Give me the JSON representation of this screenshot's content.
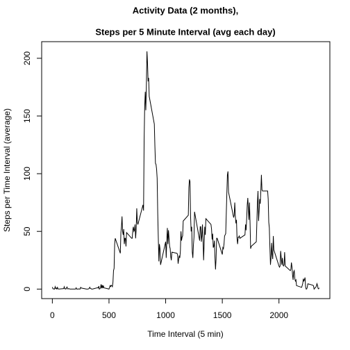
{
  "chart_data": {
    "type": "line",
    "title": "Activity Data (2 months),",
    "subtitle": "Steps per 5 Minute Interval (avg each day)",
    "x_label": "Time Interval (5 min)",
    "y_label": "Steps per Time Interval (average)",
    "xlim": [
      -94.2,
      2449.2
    ],
    "ylim": [
      -8.25,
      214.4
    ],
    "xticks": [
      0,
      500,
      1000,
      1500,
      2000
    ],
    "yticks": [
      0,
      50,
      100,
      150,
      200
    ],
    "color": "#000000",
    "x": [
      0,
      5,
      10,
      15,
      20,
      25,
      30,
      35,
      40,
      45,
      50,
      55,
      100,
      105,
      110,
      115,
      120,
      125,
      130,
      135,
      140,
      145,
      150,
      155,
      200,
      205,
      210,
      215,
      220,
      225,
      230,
      235,
      240,
      245,
      250,
      255,
      300,
      305,
      310,
      315,
      320,
      325,
      330,
      335,
      340,
      345,
      350,
      355,
      400,
      405,
      410,
      415,
      420,
      425,
      430,
      435,
      440,
      445,
      450,
      455,
      500,
      505,
      510,
      515,
      520,
      525,
      530,
      535,
      540,
      545,
      550,
      555,
      600,
      605,
      610,
      615,
      620,
      625,
      630,
      635,
      640,
      645,
      650,
      655,
      700,
      705,
      710,
      715,
      720,
      725,
      730,
      735,
      740,
      745,
      750,
      755,
      800,
      805,
      810,
      815,
      820,
      825,
      830,
      835,
      840,
      845,
      850,
      855,
      900,
      905,
      910,
      915,
      920,
      925,
      930,
      935,
      940,
      945,
      950,
      955,
      1000,
      1005,
      1010,
      1015,
      1020,
      1025,
      1030,
      1035,
      1040,
      1045,
      1050,
      1055,
      1100,
      1105,
      1110,
      1115,
      1120,
      1125,
      1130,
      1135,
      1140,
      1145,
      1150,
      1155,
      1200,
      1205,
      1210,
      1215,
      1220,
      1225,
      1230,
      1235,
      1240,
      1245,
      1250,
      1255,
      1300,
      1305,
      1310,
      1315,
      1320,
      1325,
      1330,
      1335,
      1340,
      1345,
      1350,
      1355,
      1400,
      1405,
      1410,
      1415,
      1420,
      1425,
      1430,
      1435,
      1440,
      1445,
      1450,
      1455,
      1500,
      1505,
      1510,
      1515,
      1520,
      1525,
      1530,
      1535,
      1540,
      1545,
      1550,
      1555,
      1600,
      1605,
      1610,
      1615,
      1620,
      1625,
      1630,
      1635,
      1640,
      1645,
      1650,
      1655,
      1700,
      1705,
      1710,
      1715,
      1720,
      1725,
      1730,
      1735,
      1740,
      1745,
      1750,
      1755,
      1800,
      1805,
      1810,
      1815,
      1820,
      1825,
      1830,
      1835,
      1840,
      1845,
      1850,
      1855,
      1900,
      1905,
      1910,
      1915,
      1920,
      1925,
      1930,
      1935,
      1940,
      1945,
      1950,
      1955,
      2000,
      2005,
      2010,
      2015,
      2020,
      2025,
      2030,
      2035,
      2040,
      2045,
      2050,
      2055,
      2100,
      2105,
      2110,
      2115,
      2120,
      2125,
      2130,
      2135,
      2140,
      2145,
      2150,
      2155,
      2200,
      2205,
      2210,
      2215,
      2220,
      2225,
      2230,
      2235,
      2240,
      2245,
      2250,
      2255,
      2300,
      2305,
      2310,
      2315,
      2320,
      2325,
      2330,
      2335,
      2340,
      2345,
      2350,
      2355
    ],
    "values": [
      1.7,
      0.3,
      0.1,
      0.2,
      0,
      2.1,
      0.5,
      0.9,
      0,
      1.5,
      0.3,
      0,
      0.4,
      2.0,
      0.2,
      0.3,
      0,
      1.1,
      1.8,
      0.2,
      0.2,
      0.4,
      0.3,
      0,
      0,
      0,
      1.1,
      0,
      0,
      0.1,
      0,
      0.2,
      0,
      0,
      1.5,
      0.9,
      0,
      0,
      0,
      0,
      0.2,
      0.6,
      1.6,
      0.6,
      0.5,
      0.1,
      0,
      0,
      1.2,
      0.9,
      2.6,
      0,
      0.3,
      1.1,
      4.1,
      0.7,
      3.5,
      0.8,
      3.1,
      1.1,
      0,
      1.5,
      3.0,
      2.2,
      3.3,
      3.0,
      2.1,
      6,
      16,
      18,
      39,
      44,
      31,
      49,
      54,
      63,
      50,
      47,
      52,
      39,
      44,
      44,
      37,
      49,
      44,
      44,
      51,
      54,
      50,
      51,
      56,
      44,
      52,
      70,
      58,
      56,
      73,
      68,
      129,
      158,
      171,
      155,
      177,
      206,
      196,
      180,
      183,
      167,
      143,
      124,
      109,
      108,
      104,
      96,
      66,
      45,
      24,
      39,
      35,
      21,
      41,
      27,
      42,
      53,
      39,
      51,
      44,
      37,
      35,
      28,
      25,
      32,
      31,
      30,
      22,
      26,
      29,
      27,
      33,
      50,
      42,
      45,
      46,
      59,
      64,
      88,
      95,
      93,
      63,
      50,
      54,
      32,
      27,
      38,
      45,
      67,
      42,
      54,
      54,
      41,
      46,
      56,
      43,
      25,
      40,
      54,
      47,
      61,
      56,
      52,
      43,
      48,
      36,
      37,
      42,
      28,
      17,
      26,
      44,
      44,
      30,
      36,
      35,
      39,
      46,
      47,
      48,
      65,
      83,
      99,
      102,
      84,
      62,
      64,
      75,
      63,
      57,
      60,
      44,
      39,
      45,
      45,
      46,
      44,
      47,
      56,
      51,
      61,
      73,
      79,
      69,
      60,
      75,
      57,
      35,
      37,
      41,
      58,
      75,
      85,
      59,
      68,
      78,
      74,
      85,
      99,
      86,
      85,
      85,
      78,
      58,
      53,
      36,
      21,
      27,
      40,
      30,
      26,
      46,
      34,
      20,
      19,
      20,
      33,
      27,
      21,
      27,
      21,
      20,
      21,
      32,
      20,
      16,
      17,
      23,
      19,
      12,
      8,
      15,
      16,
      9,
      7,
      8,
      3,
      1.5,
      3,
      5,
      9,
      7,
      8,
      10,
      2,
      0,
      0.1,
      1.6,
      4.6,
      3.3,
      2.8,
      0,
      0.8,
      1,
      1.6,
      2.6,
      4.7,
      3.3,
      0.6,
      0.2,
      1.1
    ]
  }
}
